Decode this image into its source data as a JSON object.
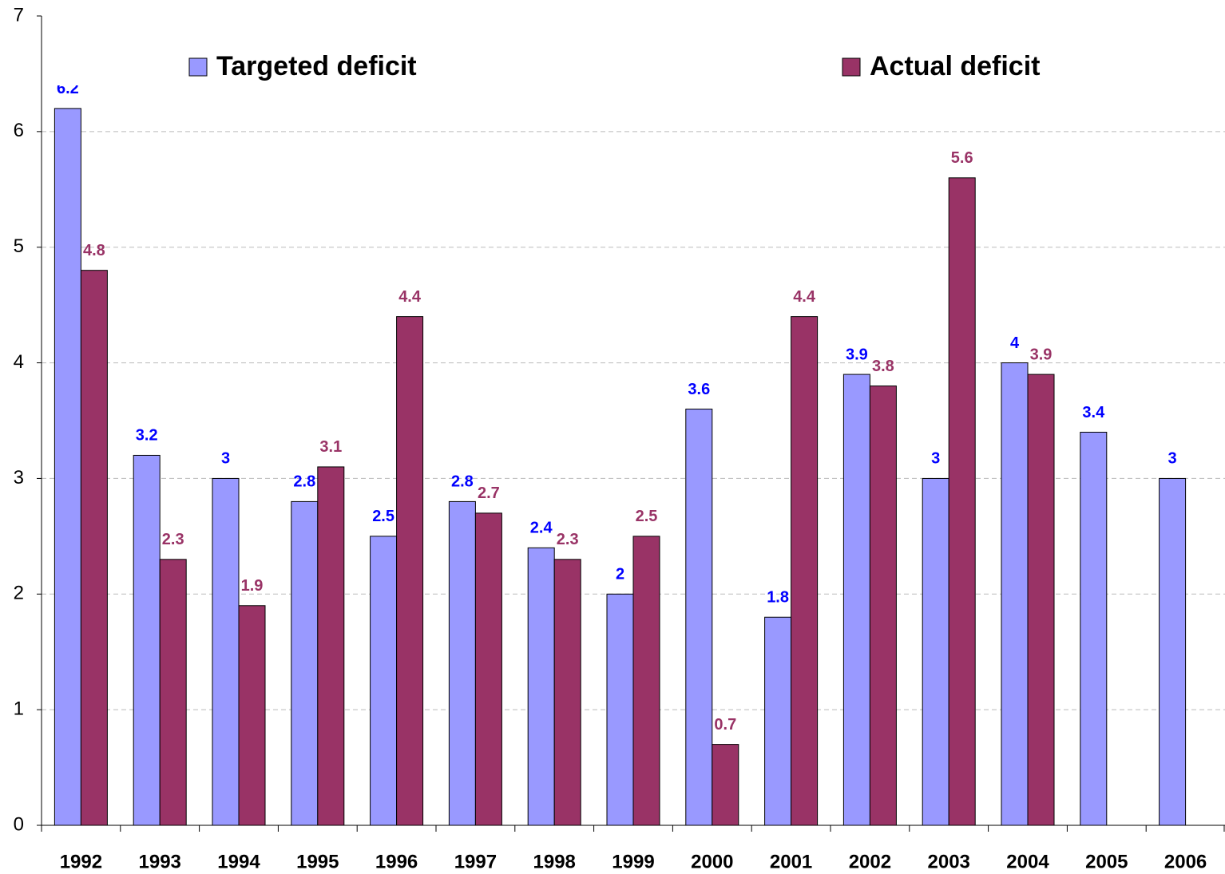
{
  "chart_data": {
    "type": "bar",
    "categories": [
      "1992",
      "1993",
      "1994",
      "1995",
      "1996",
      "1997",
      "1998",
      "1999",
      "2000",
      "2001",
      "2002",
      "2003",
      "2004",
      "2005",
      "2006"
    ],
    "series": [
      {
        "name": "Targeted deficit",
        "color": "#9999ff",
        "label_color": "#0000ff",
        "values": [
          6.2,
          3.2,
          3,
          2.8,
          2.5,
          2.8,
          2.4,
          2,
          3.6,
          1.8,
          3.9,
          3,
          4,
          3.4,
          3
        ]
      },
      {
        "name": "Actual deficit",
        "color": "#993366",
        "label_color": "#993366",
        "values": [
          4.8,
          2.3,
          1.9,
          3.1,
          4.4,
          2.7,
          2.3,
          2.5,
          0.7,
          4.4,
          3.8,
          5.6,
          3.9,
          null,
          null
        ]
      }
    ],
    "ylim": [
      0,
      7
    ],
    "yticks": [
      0,
      1,
      2,
      3,
      4,
      5,
      6,
      7
    ],
    "grid": true,
    "legend": "top"
  }
}
